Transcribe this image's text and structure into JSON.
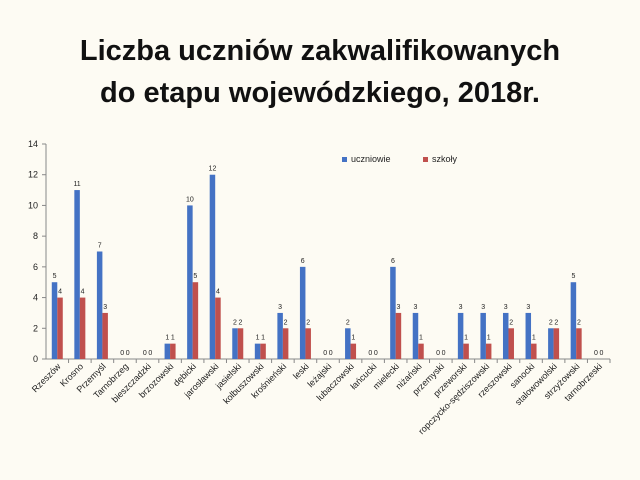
{
  "title": {
    "line1": "Liczba uczniów zakwalifikowanych",
    "line2": "do etapu wojewódzkiego, 2018r."
  },
  "colors": {
    "uczniowie": "#4472c4",
    "szkoly": "#c0504d",
    "axis": "#888888"
  },
  "chart_data": {
    "type": "bar",
    "title": "Liczba uczniów zakwalifikowanych do etapu wojewódzkiego, 2018r.",
    "xlabel": "",
    "ylabel": "",
    "ylim": [
      0,
      14
    ],
    "yticks": [
      0,
      2,
      4,
      6,
      8,
      10,
      12,
      14
    ],
    "grid": false,
    "legend_position": "top-right",
    "categories": [
      "Rzeszów",
      "Krosno",
      "Przemyśl",
      "Tarnobrzeg",
      "bieszczadzki",
      "brzozowski",
      "dębicki",
      "jarosławski",
      "jasielski",
      "kolbuszowski",
      "krośnieński",
      "leski",
      "leżajski",
      "lubaczowski",
      "łańcucki",
      "mielecki",
      "niżański",
      "przemyski",
      "przeworski",
      "ropczycko-sędziszowski",
      "rzeszowski",
      "sanocki",
      "stalowowolski",
      "strzyżowski",
      "tarnobrzeski"
    ],
    "series": [
      {
        "name": "uczniowie",
        "values": [
          5,
          11,
          7,
          0,
          0,
          1,
          10,
          12,
          2,
          1,
          3,
          6,
          0,
          2,
          0,
          6,
          3,
          0,
          3,
          3,
          3,
          3,
          2,
          5,
          0
        ]
      },
      {
        "name": "szkoły",
        "values": [
          4,
          4,
          3,
          0,
          0,
          1,
          5,
          4,
          2,
          1,
          2,
          2,
          0,
          1,
          0,
          3,
          1,
          0,
          1,
          1,
          2,
          1,
          2,
          2,
          0
        ]
      }
    ]
  }
}
